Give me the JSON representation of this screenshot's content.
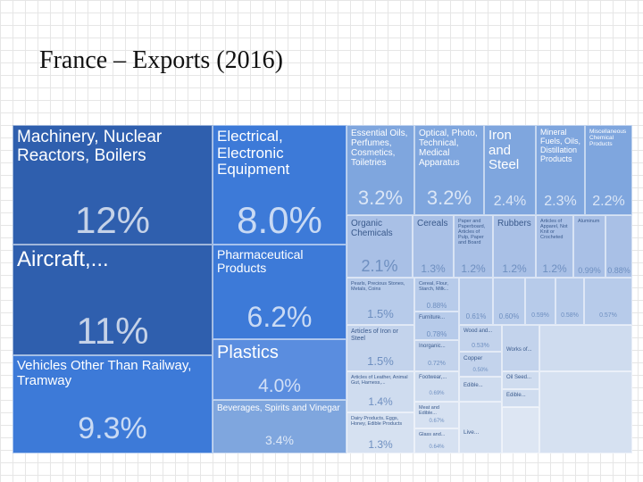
{
  "title": "France – Exports (2016)",
  "colors": {
    "dark": "#2f5fae",
    "mid": "#3d7ad8",
    "light1": "#7fa6de",
    "light2": "#a9c0e6",
    "light3": "#c9d6ea"
  },
  "chart_data": {
    "type": "treemap",
    "title": "France – Exports (2016)",
    "tiles": [
      {
        "label": "Machinery, Nuclear Reactors, Boilers",
        "value": "12%"
      },
      {
        "label": "Aircraft,...",
        "value": "11%"
      },
      {
        "label": "Vehicles Other Than Railway, Tramway",
        "value": "9.3%"
      },
      {
        "label": "Electrical, Electronic Equipment",
        "value": "8.0%"
      },
      {
        "label": "Pharmaceutical Products",
        "value": "6.2%"
      },
      {
        "label": "Plastics",
        "value": "4.0%"
      },
      {
        "label": "Beverages, Spirits and Vinegar",
        "value": "3.4%"
      },
      {
        "label": "Essential Oils, Perfumes, Cosmetics, Toiletries",
        "value": "3.2%"
      },
      {
        "label": "Optical, Photo, Technical, Medical Apparatus",
        "value": "3.2%"
      },
      {
        "label": "Iron and Steel",
        "value": "2.4%"
      },
      {
        "label": "Mineral Fuels, Oils, Distillation Products",
        "value": "2.3%"
      },
      {
        "label": "Miscellaneous Chemical Products",
        "value": "2.2%"
      },
      {
        "label": "Organic Chemicals",
        "value": "2.1%"
      },
      {
        "label": "Cereals",
        "value": "1.3%"
      },
      {
        "label": "Paper and Paperboard, Articles of Pulp, Paper and Board",
        "value": "1.2%"
      },
      {
        "label": "Rubbers",
        "value": "1.2%"
      },
      {
        "label": "Articles of Apparel, Not Knit or Crocheted",
        "value": "1.2%"
      },
      {
        "label": "Aluminum",
        "value": "0.99%"
      },
      {
        "label": "",
        "value": "0.88%"
      },
      {
        "label": "Pearls, Precious Stones, Metals, Coins",
        "value": "1.5%"
      },
      {
        "label": "Cereal, Flour, Starch, Milk...",
        "value": "0.88%"
      },
      {
        "label": "Furniture...",
        "value": "0.78%"
      },
      {
        "label": "",
        "value": "0.61%"
      },
      {
        "label": "",
        "value": "0.60%"
      },
      {
        "label": "",
        "value": "0.59%"
      },
      {
        "label": "",
        "value": "0.58%"
      },
      {
        "label": "",
        "value": "0.57%"
      },
      {
        "label": "Articles of Iron or Steel",
        "value": "1.5%"
      },
      {
        "label": "Inorganic...",
        "value": "0.72%"
      },
      {
        "label": "Wood and...",
        "value": "0.53%"
      },
      {
        "label": "Copper",
        "value": "0.50%"
      },
      {
        "label": "Works of...",
        "value": ""
      },
      {
        "label": "Articles of Leather, Animal Gut, Harness,...",
        "value": "1.4%"
      },
      {
        "label": "Footwear,...",
        "value": "0.69%"
      },
      {
        "label": "Edible...",
        "value": ""
      },
      {
        "label": "Oil Seed...",
        "value": ""
      },
      {
        "label": "Edible...",
        "value": ""
      },
      {
        "label": "Dairy Products, Eggs, Honey, Edible Products",
        "value": "1.3%"
      },
      {
        "label": "Meat and Edible...",
        "value": "0.67%"
      },
      {
        "label": "Glass and...",
        "value": "0.64%"
      },
      {
        "label": "Live...",
        "value": ""
      }
    ]
  }
}
